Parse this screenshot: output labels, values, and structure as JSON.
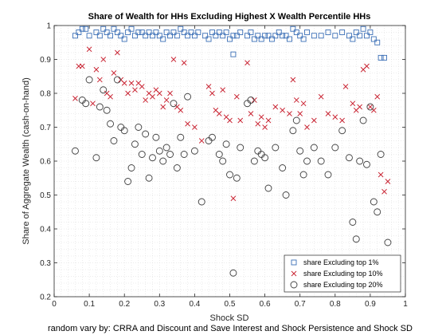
{
  "chart_data": {
    "type": "scatter",
    "title": "Share of Wealth for HHs Excluding Highest X Wealth Percentile HHs",
    "xlabel": "Shock SD",
    "ylabel": "Share of Aggregate Wealth (cash-on-hand)",
    "caption": "random vary by: CRRA and Discount and Save Interest and Shock Persistence and Shock SD",
    "xlim": [
      0,
      1
    ],
    "ylim": [
      0.2,
      1.0
    ],
    "xticks": [
      "0",
      "0.1",
      "0.2",
      "0.3",
      "0.4",
      "0.5",
      "0.6",
      "0.7",
      "0.8",
      "0.9",
      "1"
    ],
    "yticks": [
      "0.2",
      "0.3",
      "0.4",
      "0.5",
      "0.6",
      "0.7",
      "0.8",
      "0.9",
      "1"
    ],
    "grid": "minor dotted",
    "legend_position": "bottom-right",
    "colors": {
      "top1": "#0072BD",
      "top10": "#D95319",
      "top20": "#404040"
    },
    "series": [
      {
        "name": "share Excluding top 1%",
        "marker": "square",
        "color": "#3B6FB6",
        "points": [
          [
            0.06,
            0.97
          ],
          [
            0.07,
            0.98
          ],
          [
            0.08,
            0.99
          ],
          [
            0.09,
            0.99
          ],
          [
            0.1,
            0.97
          ],
          [
            0.12,
            0.98
          ],
          [
            0.13,
            0.97
          ],
          [
            0.14,
            0.99
          ],
          [
            0.15,
            0.98
          ],
          [
            0.16,
            0.97
          ],
          [
            0.17,
            0.99
          ],
          [
            0.18,
            0.98
          ],
          [
            0.19,
            0.97
          ],
          [
            0.2,
            0.96
          ],
          [
            0.21,
            0.98
          ],
          [
            0.22,
            0.99
          ],
          [
            0.23,
            0.97
          ],
          [
            0.24,
            0.98
          ],
          [
            0.25,
            0.98
          ],
          [
            0.26,
            0.97
          ],
          [
            0.27,
            0.98
          ],
          [
            0.28,
            0.97
          ],
          [
            0.29,
            0.98
          ],
          [
            0.3,
            0.97
          ],
          [
            0.31,
            0.96
          ],
          [
            0.32,
            0.98
          ],
          [
            0.33,
            0.97
          ],
          [
            0.34,
            0.98
          ],
          [
            0.35,
            0.97
          ],
          [
            0.36,
            0.99
          ],
          [
            0.37,
            0.98
          ],
          [
            0.38,
            0.97
          ],
          [
            0.39,
            0.98
          ],
          [
            0.4,
            0.97
          ],
          [
            0.41,
            0.98
          ],
          [
            0.43,
            0.97
          ],
          [
            0.44,
            0.96
          ],
          [
            0.45,
            0.98
          ],
          [
            0.46,
            0.97
          ],
          [
            0.47,
            0.98
          ],
          [
            0.48,
            0.97
          ],
          [
            0.49,
            0.98
          ],
          [
            0.5,
            0.96
          ],
          [
            0.51,
            0.97
          ],
          [
            0.51,
            0.915
          ],
          [
            0.52,
            0.97
          ],
          [
            0.53,
            0.98
          ],
          [
            0.55,
            0.97
          ],
          [
            0.56,
            0.98
          ],
          [
            0.57,
            0.96
          ],
          [
            0.58,
            0.97
          ],
          [
            0.59,
            0.96
          ],
          [
            0.6,
            0.97
          ],
          [
            0.61,
            0.97
          ],
          [
            0.62,
            0.96
          ],
          [
            0.63,
            0.97
          ],
          [
            0.64,
            0.98
          ],
          [
            0.65,
            0.97
          ],
          [
            0.66,
            0.97
          ],
          [
            0.67,
            0.96
          ],
          [
            0.68,
            0.99
          ],
          [
            0.69,
            0.98
          ],
          [
            0.7,
            0.97
          ],
          [
            0.71,
            0.96
          ],
          [
            0.72,
            0.98
          ],
          [
            0.74,
            0.97
          ],
          [
            0.76,
            0.97
          ],
          [
            0.78,
            0.98
          ],
          [
            0.8,
            0.97
          ],
          [
            0.82,
            0.98
          ],
          [
            0.84,
            0.97
          ],
          [
            0.85,
            0.96
          ],
          [
            0.86,
            0.98
          ],
          [
            0.87,
            0.97
          ],
          [
            0.88,
            0.99
          ],
          [
            0.89,
            0.97
          ],
          [
            0.9,
            0.98
          ],
          [
            0.91,
            0.96
          ],
          [
            0.92,
            0.95
          ],
          [
            0.93,
            0.905
          ],
          [
            0.94,
            0.905
          ]
        ]
      },
      {
        "name": "share Excluding top 10%",
        "marker": "x",
        "color": "#C8202F",
        "points": [
          [
            0.06,
            0.785
          ],
          [
            0.07,
            0.88
          ],
          [
            0.08,
            0.88
          ],
          [
            0.1,
            0.93
          ],
          [
            0.11,
            0.77
          ],
          [
            0.12,
            0.87
          ],
          [
            0.13,
            0.84
          ],
          [
            0.14,
            0.9
          ],
          [
            0.15,
            0.8
          ],
          [
            0.16,
            0.79
          ],
          [
            0.17,
            0.86
          ],
          [
            0.18,
            0.92
          ],
          [
            0.19,
            0.84
          ],
          [
            0.2,
            0.83
          ],
          [
            0.21,
            0.8
          ],
          [
            0.22,
            0.83
          ],
          [
            0.23,
            0.81
          ],
          [
            0.24,
            0.83
          ],
          [
            0.25,
            0.82
          ],
          [
            0.26,
            0.78
          ],
          [
            0.27,
            0.8
          ],
          [
            0.28,
            0.79
          ],
          [
            0.29,
            0.81
          ],
          [
            0.3,
            0.8
          ],
          [
            0.31,
            0.76
          ],
          [
            0.32,
            0.78
          ],
          [
            0.33,
            0.8
          ],
          [
            0.34,
            0.9
          ],
          [
            0.35,
            0.76
          ],
          [
            0.36,
            0.75
          ],
          [
            0.37,
            0.89
          ],
          [
            0.38,
            0.71
          ],
          [
            0.4,
            0.7
          ],
          [
            0.42,
            0.66
          ],
          [
            0.44,
            0.82
          ],
          [
            0.45,
            0.8
          ],
          [
            0.46,
            0.75
          ],
          [
            0.47,
            0.74
          ],
          [
            0.48,
            0.81
          ],
          [
            0.49,
            0.73
          ],
          [
            0.5,
            0.72
          ],
          [
            0.51,
            0.49
          ],
          [
            0.52,
            0.79
          ],
          [
            0.53,
            0.72
          ],
          [
            0.55,
            0.89
          ],
          [
            0.56,
            0.74
          ],
          [
            0.57,
            0.78
          ],
          [
            0.58,
            0.71
          ],
          [
            0.59,
            0.73
          ],
          [
            0.6,
            0.7
          ],
          [
            0.61,
            0.72
          ],
          [
            0.63,
            0.76
          ],
          [
            0.65,
            0.75
          ],
          [
            0.67,
            0.74
          ],
          [
            0.68,
            0.84
          ],
          [
            0.69,
            0.78
          ],
          [
            0.7,
            0.74
          ],
          [
            0.71,
            0.77
          ],
          [
            0.72,
            0.7
          ],
          [
            0.74,
            0.72
          ],
          [
            0.76,
            0.79
          ],
          [
            0.78,
            0.74
          ],
          [
            0.8,
            0.73
          ],
          [
            0.82,
            0.72
          ],
          [
            0.83,
            0.82
          ],
          [
            0.85,
            0.77
          ],
          [
            0.86,
            0.75
          ],
          [
            0.87,
            0.76
          ],
          [
            0.88,
            0.87
          ],
          [
            0.89,
            0.88
          ],
          [
            0.9,
            0.76
          ],
          [
            0.91,
            0.75
          ],
          [
            0.92,
            0.79
          ],
          [
            0.93,
            0.56
          ],
          [
            0.94,
            0.51
          ],
          [
            0.95,
            0.54
          ]
        ]
      },
      {
        "name": "share Excluding top 20%",
        "marker": "circle",
        "color": "#404040",
        "points": [
          [
            0.06,
            0.63
          ],
          [
            0.08,
            0.78
          ],
          [
            0.09,
            0.77
          ],
          [
            0.1,
            0.84
          ],
          [
            0.12,
            0.61
          ],
          [
            0.13,
            0.76
          ],
          [
            0.14,
            0.81
          ],
          [
            0.15,
            0.75
          ],
          [
            0.16,
            0.71
          ],
          [
            0.17,
            0.66
          ],
          [
            0.18,
            0.84
          ],
          [
            0.19,
            0.7
          ],
          [
            0.2,
            0.69
          ],
          [
            0.21,
            0.54
          ],
          [
            0.22,
            0.58
          ],
          [
            0.23,
            0.65
          ],
          [
            0.24,
            0.7
          ],
          [
            0.25,
            0.62
          ],
          [
            0.26,
            0.68
          ],
          [
            0.27,
            0.55
          ],
          [
            0.28,
            0.61
          ],
          [
            0.29,
            0.67
          ],
          [
            0.3,
            0.63
          ],
          [
            0.31,
            0.6
          ],
          [
            0.32,
            0.64
          ],
          [
            0.33,
            0.62
          ],
          [
            0.34,
            0.77
          ],
          [
            0.35,
            0.58
          ],
          [
            0.36,
            0.67
          ],
          [
            0.37,
            0.62
          ],
          [
            0.38,
            0.79
          ],
          [
            0.4,
            0.63
          ],
          [
            0.42,
            0.48
          ],
          [
            0.44,
            0.66
          ],
          [
            0.45,
            0.67
          ],
          [
            0.47,
            0.62
          ],
          [
            0.48,
            0.6
          ],
          [
            0.49,
            0.65
          ],
          [
            0.5,
            0.56
          ],
          [
            0.51,
            0.27
          ],
          [
            0.52,
            0.55
          ],
          [
            0.53,
            0.64
          ],
          [
            0.55,
            0.77
          ],
          [
            0.56,
            0.78
          ],
          [
            0.57,
            0.6
          ],
          [
            0.58,
            0.63
          ],
          [
            0.59,
            0.62
          ],
          [
            0.6,
            0.61
          ],
          [
            0.61,
            0.52
          ],
          [
            0.63,
            0.64
          ],
          [
            0.65,
            0.58
          ],
          [
            0.66,
            0.5
          ],
          [
            0.68,
            0.69
          ],
          [
            0.69,
            0.72
          ],
          [
            0.7,
            0.63
          ],
          [
            0.71,
            0.56
          ],
          [
            0.72,
            0.6
          ],
          [
            0.74,
            0.64
          ],
          [
            0.76,
            0.6
          ],
          [
            0.78,
            0.56
          ],
          [
            0.8,
            0.64
          ],
          [
            0.82,
            0.69
          ],
          [
            0.84,
            0.61
          ],
          [
            0.85,
            0.42
          ],
          [
            0.86,
            0.37
          ],
          [
            0.87,
            0.6
          ],
          [
            0.88,
            0.72
          ],
          [
            0.89,
            0.59
          ],
          [
            0.9,
            0.76
          ],
          [
            0.91,
            0.48
          ],
          [
            0.92,
            0.45
          ],
          [
            0.93,
            0.62
          ],
          [
            0.94,
            0.31
          ],
          [
            0.95,
            0.36
          ]
        ]
      }
    ]
  }
}
